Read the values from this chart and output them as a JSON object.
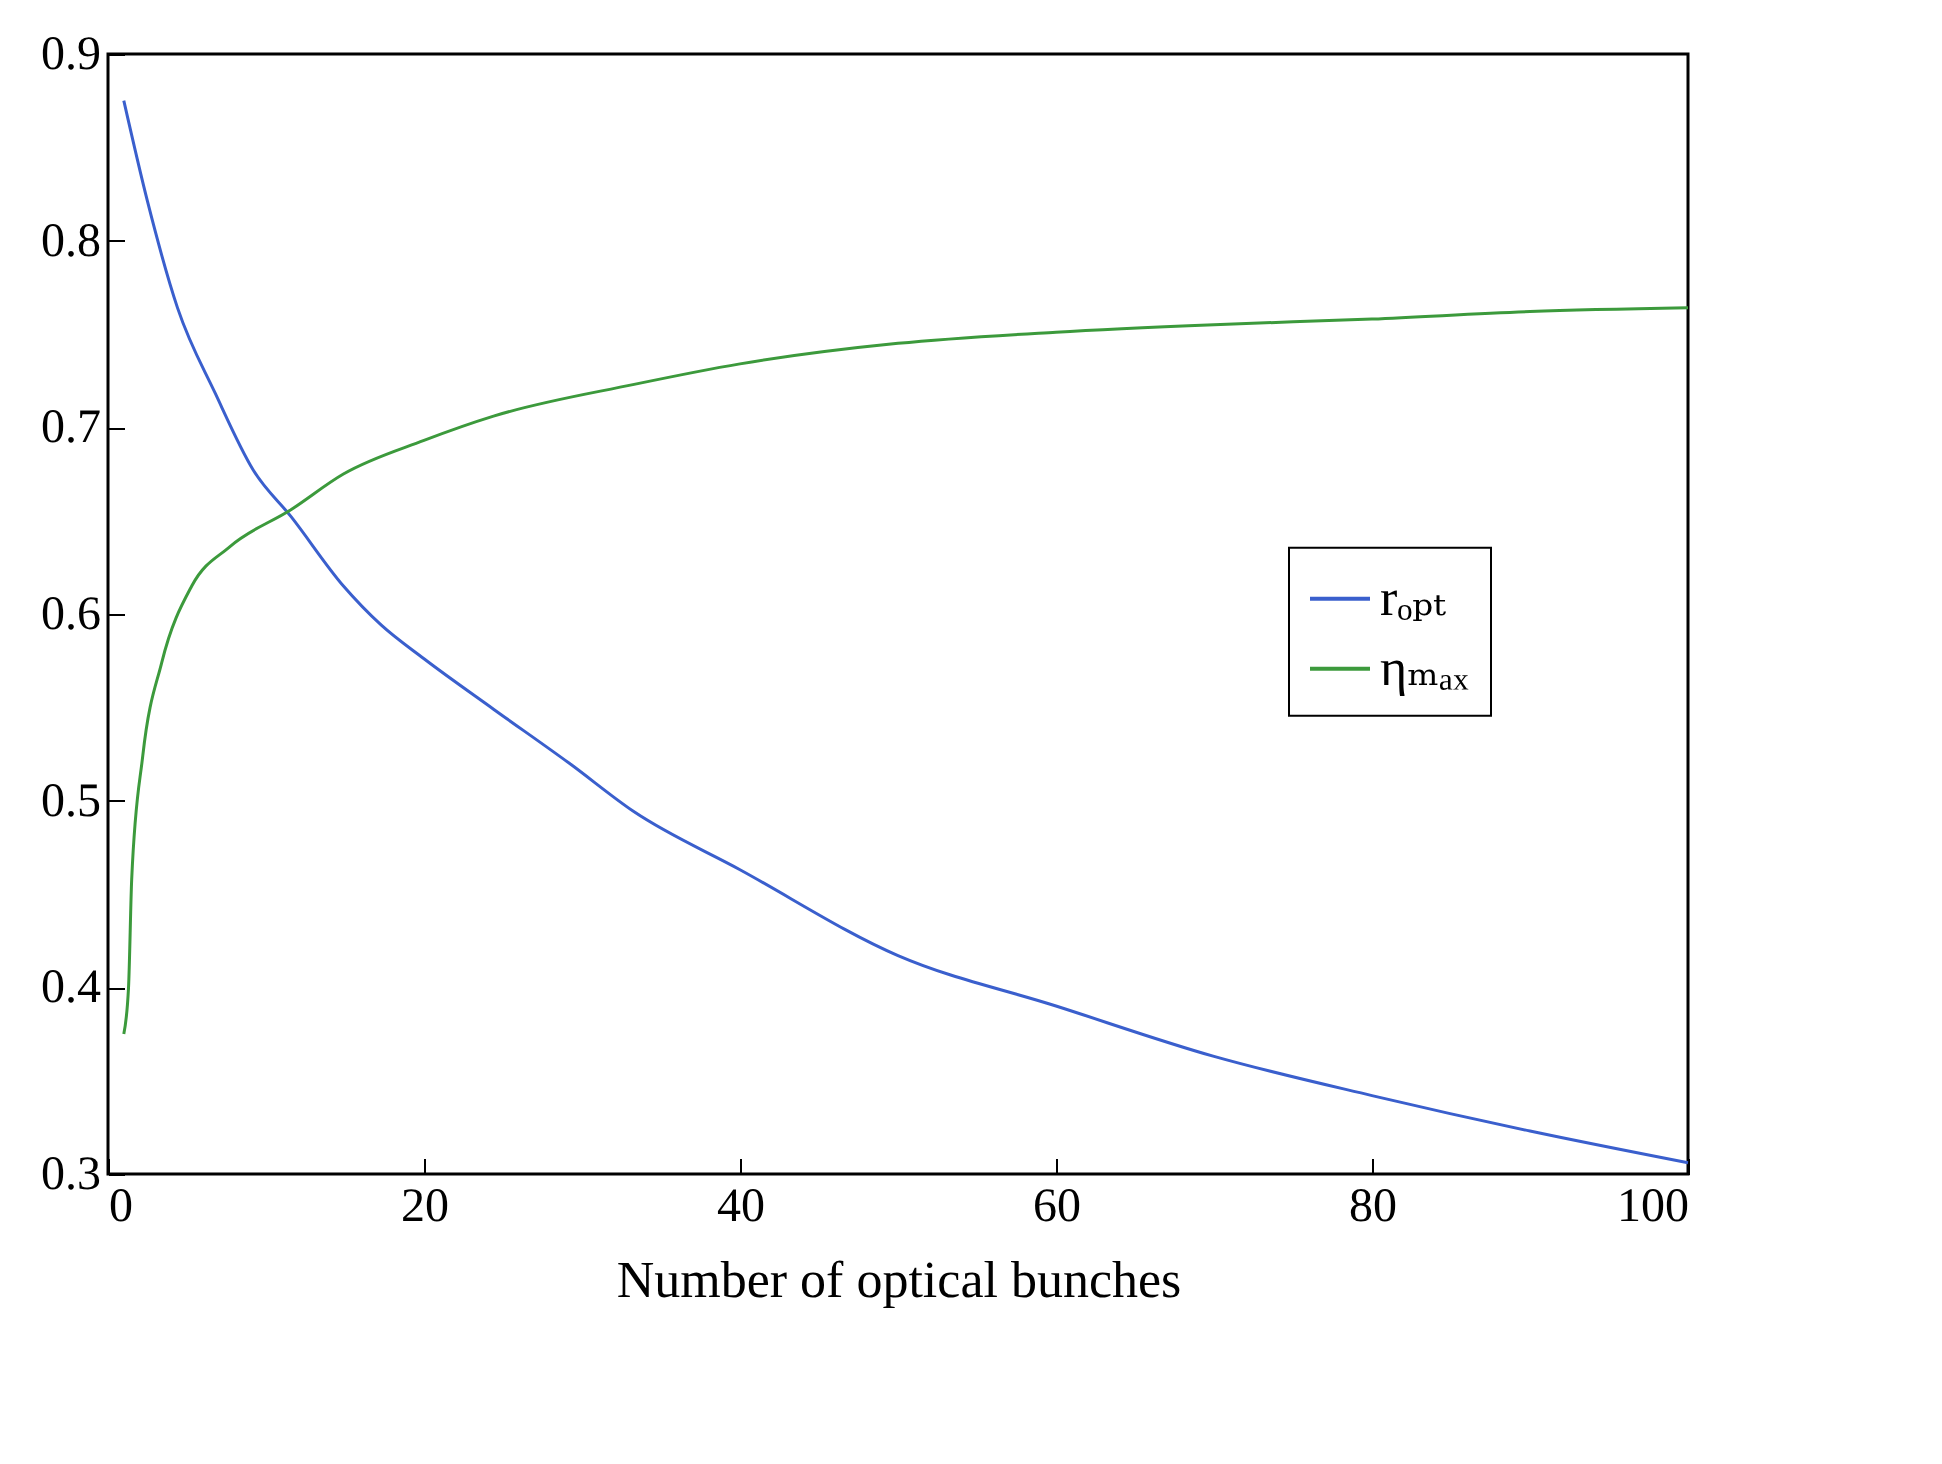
{
  "chart_data": {
    "type": "line",
    "xlabel": "Number of optical bunches",
    "xlim": [
      0,
      100
    ],
    "xticks": [
      0,
      20,
      40,
      60,
      80,
      100
    ],
    "ylim": [
      0.3,
      0.9
    ],
    "yticks": [
      0.3,
      0.4,
      0.5,
      0.6,
      0.7,
      0.8,
      0.9
    ],
    "grid": false,
    "legend": "right",
    "series": [
      {
        "name": "rₒₚₜ",
        "color": "#3a5fcd",
        "x": [
          1,
          2.5,
          4.4,
          6.8,
          9.2,
          11.6,
          14.9,
          17.3,
          20,
          24.4,
          29.2,
          33.3,
          40,
          50,
          60,
          70,
          80,
          90,
          100
        ],
        "values": [
          0.875,
          0.821,
          0.764,
          0.718,
          0.677,
          0.652,
          0.615,
          0.594,
          0.576,
          0.549,
          0.52,
          0.494,
          0.463,
          0.417,
          0.39,
          0.363,
          0.342,
          0.323,
          0.306
        ]
      },
      {
        "name": "ηₘₐₓ",
        "color": "#3c9a3c",
        "x": [
          1,
          1.3,
          1.5,
          2.2,
          3.4,
          5.3,
          7.7,
          11.6,
          14.9,
          20,
          24.4,
          33.3,
          40,
          50,
          60,
          70,
          80,
          90,
          100
        ],
        "values": [
          0.375,
          0.4,
          0.458,
          0.524,
          0.574,
          0.615,
          0.636,
          0.656,
          0.675,
          0.693,
          0.706,
          0.723,
          0.734,
          0.745,
          0.751,
          0.755,
          0.758,
          0.762,
          0.764
        ]
      }
    ]
  }
}
